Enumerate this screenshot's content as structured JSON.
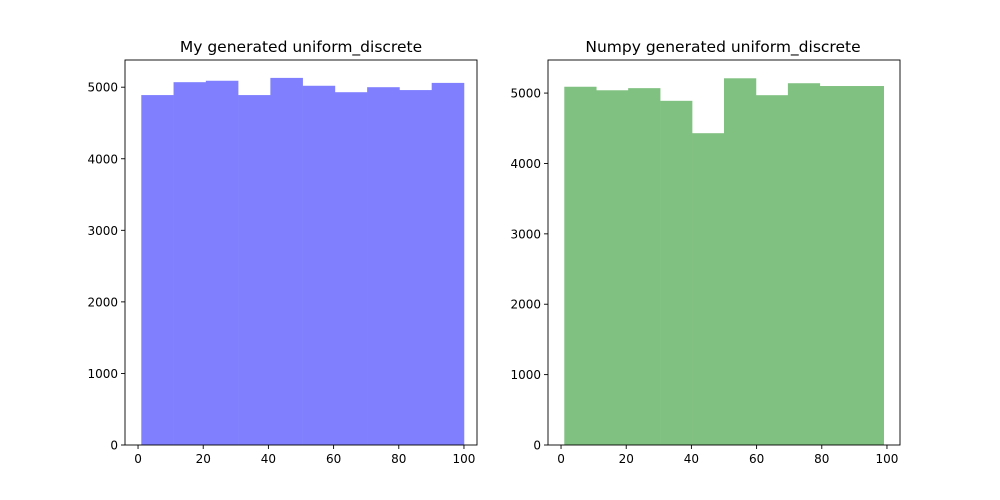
{
  "chart_data": [
    {
      "type": "bar",
      "title": "My generated uniform_discrete",
      "xlabel": "",
      "ylabel": "",
      "color": "#8080ff",
      "bin_edges": [
        1,
        10.9,
        20.8,
        30.7,
        40.6,
        50.5,
        60.4,
        70.3,
        80.2,
        90.1,
        100
      ],
      "values": [
        4890,
        5070,
        5090,
        4890,
        5130,
        5020,
        4930,
        5000,
        4960,
        5060
      ],
      "xlim": [
        -4,
        104
      ],
      "ylim": [
        0,
        5380
      ],
      "xticks": [
        0,
        20,
        40,
        60,
        80,
        100
      ],
      "xtick_labels": [
        "0",
        "20",
        "40",
        "60",
        "80",
        "100"
      ],
      "yticks": [
        0,
        1000,
        2000,
        3000,
        4000,
        5000
      ],
      "ytick_labels": [
        "0",
        "1000",
        "2000",
        "3000",
        "4000",
        "5000"
      ],
      "grid": false
    },
    {
      "type": "bar",
      "title": "Numpy generated uniform_discrete",
      "xlabel": "",
      "ylabel": "",
      "color": "#80c080",
      "bin_edges": [
        1,
        10.8,
        20.6,
        30.4,
        40.2,
        50,
        59.8,
        69.6,
        79.4,
        89.2,
        99
      ],
      "values": [
        5090,
        5040,
        5070,
        4890,
        4430,
        5210,
        4970,
        5140,
        5100,
        5100
      ],
      "xlim": [
        -4,
        104
      ],
      "ylim": [
        0,
        5470
      ],
      "xticks": [
        0,
        20,
        40,
        60,
        80,
        100
      ],
      "xtick_labels": [
        "0",
        "20",
        "40",
        "60",
        "80",
        "100"
      ],
      "yticks": [
        0,
        1000,
        2000,
        3000,
        4000,
        5000
      ],
      "ytick_labels": [
        "0",
        "1000",
        "2000",
        "3000",
        "4000",
        "5000"
      ],
      "grid": false
    }
  ]
}
